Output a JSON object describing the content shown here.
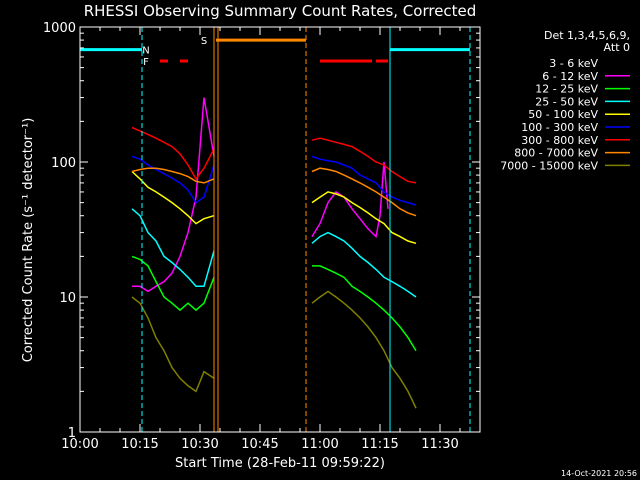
{
  "chart_data": {
    "type": "line",
    "title": "RHESSI Observing Summary Count Rates, Corrected",
    "xlabel": "Start Time (28-Feb-11 09:59:22)",
    "ylabel": "Corrected Count Rate (s⁻¹ detector⁻¹)",
    "x_unit": "minutes after 10:00 UT",
    "xlim": [
      0,
      100
    ],
    "ylim": [
      1,
      1000
    ],
    "yscale": "log",
    "x_ticks": [
      {
        "v": 0,
        "label": "10:00"
      },
      {
        "v": 15,
        "label": "10:15"
      },
      {
        "v": 30,
        "label": "10:30"
      },
      {
        "v": 45,
        "label": "10:45"
      },
      {
        "v": 60,
        "label": "11:00"
      },
      {
        "v": 75,
        "label": "11:15"
      },
      {
        "v": 90,
        "label": "11:30"
      }
    ],
    "y_ticks": [
      {
        "v": 1,
        "label": "1"
      },
      {
        "v": 10,
        "label": "10"
      },
      {
        "v": 100,
        "label": "100"
      },
      {
        "v": 1000,
        "label": "1000"
      }
    ],
    "legend": {
      "position": "right",
      "header": [
        "Det 1,3,4,5,6,9,",
        "Att 0"
      ]
    },
    "series": [
      {
        "name": "3 - 6 keV",
        "color": "#000000",
        "x": [
          13,
          15,
          17,
          19,
          21,
          23,
          25,
          27,
          29,
          31,
          33.5,
          57.5,
          58,
          60,
          62,
          64,
          66,
          68,
          70,
          72,
          74,
          75,
          76,
          77,
          78,
          80,
          82,
          84
        ],
        "y": [
          10,
          9,
          7,
          6,
          6,
          7,
          9,
          13,
          30,
          240,
          100,
          null,
          20,
          28,
          40,
          45,
          40,
          34,
          30,
          27,
          25,
          36,
          75,
          20,
          3,
          2,
          1.2,
          1
        ]
      },
      {
        "name": "6 - 12 keV",
        "color": "#ff00ff",
        "x": [
          13,
          15,
          17,
          19,
          21,
          23,
          25,
          27,
          29,
          31,
          33.5,
          57.5,
          58,
          60,
          62,
          64,
          66,
          68,
          70,
          72,
          74,
          75,
          76,
          77,
          78,
          80,
          82,
          84
        ],
        "y": [
          12,
          12,
          11,
          12,
          13,
          15,
          20,
          30,
          55,
          300,
          110,
          null,
          28,
          35,
          50,
          60,
          55,
          45,
          38,
          32,
          28,
          40,
          100,
          45,
          null,
          null,
          null,
          null
        ]
      },
      {
        "name": "12 - 25 keV",
        "color": "#00ff00",
        "x": [
          13,
          15,
          17,
          19,
          21,
          23,
          25,
          27,
          29,
          31,
          33.5,
          57.5,
          58,
          60,
          62,
          64,
          66,
          68,
          70,
          72,
          74,
          76,
          78,
          80,
          82,
          84
        ],
        "y": [
          20,
          19,
          17,
          13,
          10,
          9,
          8,
          9,
          8,
          9,
          14,
          null,
          17,
          17,
          16,
          15,
          14,
          12,
          11,
          10,
          9,
          8,
          7,
          6,
          5,
          4
        ]
      },
      {
        "name": "25 - 50 keV",
        "color": "#00ffff",
        "x": [
          13,
          15,
          17,
          19,
          21,
          23,
          25,
          27,
          29,
          31,
          33.5,
          57.5,
          58,
          60,
          62,
          64,
          66,
          68,
          70,
          72,
          74,
          76,
          78,
          80,
          82,
          84
        ],
        "y": [
          45,
          40,
          30,
          26,
          20,
          18,
          16,
          14,
          12,
          12,
          22,
          null,
          25,
          28,
          30,
          28,
          26,
          23,
          20,
          18,
          16,
          14,
          13,
          12,
          11,
          10
        ]
      },
      {
        "name": "50 - 100 keV",
        "color": "#ffff00",
        "x": [
          13,
          15,
          17,
          19,
          21,
          23,
          25,
          27,
          29,
          31,
          33.5,
          57.5,
          58,
          60,
          62,
          64,
          66,
          68,
          70,
          72,
          74,
          76,
          78,
          80,
          82,
          84
        ],
        "y": [
          85,
          75,
          65,
          60,
          55,
          50,
          45,
          40,
          35,
          38,
          40,
          null,
          50,
          55,
          60,
          58,
          55,
          50,
          46,
          42,
          38,
          35,
          30,
          28,
          26,
          25
        ]
      },
      {
        "name": "100 - 300 keV",
        "color": "#0000ff",
        "x": [
          13,
          15,
          17,
          19,
          21,
          23,
          25,
          27,
          29,
          31,
          33.5,
          57.5,
          58,
          60,
          62,
          64,
          66,
          68,
          70,
          72,
          74,
          76,
          78,
          80,
          82,
          84
        ],
        "y": [
          110,
          105,
          95,
          88,
          82,
          76,
          70,
          62,
          50,
          55,
          95,
          null,
          110,
          105,
          102,
          100,
          95,
          90,
          80,
          75,
          70,
          60,
          55,
          52,
          50,
          48
        ]
      },
      {
        "name": "300 - 800 keV",
        "color": "#ff0000",
        "x": [
          13,
          15,
          17,
          19,
          21,
          23,
          25,
          27,
          29,
          31,
          33.5,
          57.5,
          58,
          60,
          62,
          64,
          66,
          68,
          70,
          72,
          74,
          76,
          78,
          80,
          82,
          84
        ],
        "y": [
          180,
          170,
          160,
          150,
          140,
          130,
          115,
          95,
          75,
          90,
          125,
          null,
          145,
          150,
          145,
          140,
          135,
          130,
          120,
          110,
          100,
          95,
          85,
          78,
          72,
          70
        ]
      },
      {
        "name": "800 - 7000 keV",
        "color": "#ff8800",
        "x": [
          13,
          15,
          17,
          19,
          21,
          23,
          25,
          27,
          29,
          31,
          33.5,
          57.5,
          58,
          60,
          62,
          64,
          66,
          68,
          70,
          72,
          74,
          76,
          78,
          80,
          82,
          84
        ],
        "y": [
          85,
          88,
          90,
          90,
          88,
          85,
          82,
          78,
          72,
          70,
          75,
          null,
          85,
          90,
          88,
          85,
          80,
          75,
          70,
          65,
          60,
          55,
          50,
          45,
          42,
          40
        ]
      },
      {
        "name": "7000 - 15000 keV",
        "color": "#808000",
        "x": [
          13,
          15,
          17,
          19,
          21,
          23,
          25,
          27,
          29,
          31,
          33.5,
          57.5,
          58,
          60,
          62,
          64,
          66,
          68,
          70,
          72,
          74,
          76,
          78,
          80,
          82,
          84
        ],
        "y": [
          10,
          9,
          7,
          5,
          4,
          3,
          2.5,
          2.2,
          2,
          2.8,
          2.5,
          null,
          9,
          10,
          11,
          10,
          9,
          8,
          7,
          6,
          5,
          4,
          3,
          2.5,
          2,
          1.5
        ]
      }
    ],
    "attenuator_vlines": [
      {
        "x": 0,
        "color": "#00ffff",
        "style": "solid"
      },
      {
        "x": 15.5,
        "color": "#00ffff",
        "style": "dashed"
      },
      {
        "x": 33.5,
        "color": "#ff8800",
        "style": "solid"
      },
      {
        "x": 34.5,
        "color": "#ff8800",
        "style": "solid"
      },
      {
        "x": 56.5,
        "color": "#ff8800",
        "style": "dashed"
      },
      {
        "x": 77.5,
        "color": "#00ffff",
        "style": "solid"
      },
      {
        "x": 97.5,
        "color": "#00ffff",
        "style": "dashed"
      }
    ],
    "flag_bars": [
      {
        "name": "night",
        "color": "#00ffff",
        "y": 680,
        "segments": [
          [
            0,
            15.5
          ],
          [
            77.5,
            97.5
          ]
        ]
      },
      {
        "name": "saa",
        "color": "#ff8800",
        "y": 800,
        "segments": [
          [
            34,
            56.5
          ]
        ]
      },
      {
        "name": "flare",
        "color": "#ff0000",
        "y": 560,
        "segments": [
          [
            20,
            22
          ],
          [
            25,
            27
          ],
          [
            60,
            73
          ],
          [
            74,
            77
          ]
        ]
      }
    ],
    "flag_labels": [
      {
        "text": "N",
        "x": 16.5,
        "y": 680,
        "color": "#00ffff"
      },
      {
        "text": "F",
        "x": 16.5,
        "y": 560,
        "color": "#ff0000"
      },
      {
        "text": "S",
        "x": 31,
        "y": 800,
        "color": "#ff8800"
      }
    ],
    "timestamp": "14-Oct-2021 20:56"
  }
}
